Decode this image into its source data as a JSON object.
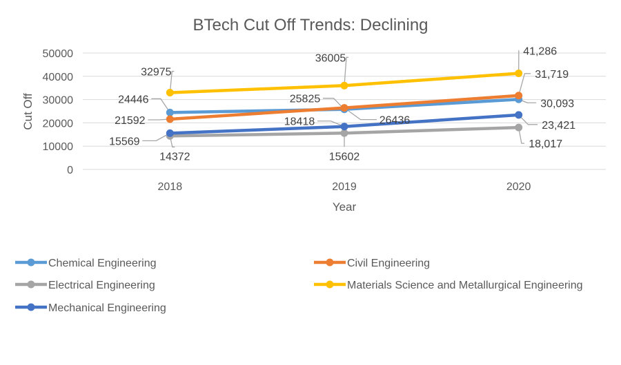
{
  "chart_data": {
    "type": "line",
    "title": "BTech Cut Off Trends: Declining",
    "xlabel": "Year",
    "ylabel": "Cut Off",
    "categories": [
      "2018",
      "2019",
      "2020"
    ],
    "ylim": [
      0,
      50000
    ],
    "yticks": [
      "0",
      "10000",
      "20000",
      "30000",
      "40000",
      "50000"
    ],
    "grid": true,
    "legend_position": "bottom",
    "series": [
      {
        "name": "Chemical Engineering",
        "color": "#5b9bd5",
        "values": [
          24446,
          25825,
          30093
        ],
        "labels": [
          "24446",
          "25825",
          "30,093"
        ]
      },
      {
        "name": "Civil Engineering",
        "color": "#ed7d31",
        "values": [
          21592,
          26436,
          31719
        ],
        "labels": [
          "21592",
          "26436",
          "31,719"
        ]
      },
      {
        "name": "Electrical Engineering",
        "color": "#a5a5a5",
        "values": [
          14372,
          15602,
          18017
        ],
        "labels": [
          "14372",
          "15602",
          "18,017"
        ]
      },
      {
        "name": "Materials Science and Metallurgical Engineering",
        "color": "#ffc000",
        "values": [
          32975,
          36005,
          41286
        ],
        "labels": [
          "32975",
          "36005",
          "41,286"
        ]
      },
      {
        "name": "Mechanical Engineering",
        "color": "#4472c4",
        "values": [
          15569,
          18418,
          23421
        ],
        "labels": [
          "15569",
          "18418",
          "23,421"
        ]
      }
    ]
  }
}
